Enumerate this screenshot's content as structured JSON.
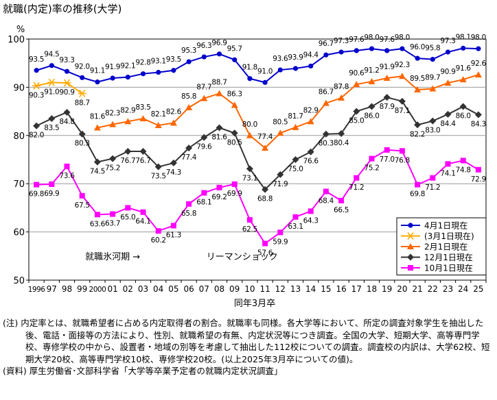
{
  "title": "就職(内定)率の推移(大学)",
  "chart_data": {
    "type": "line",
    "yunit": "%",
    "xlabel": "同年3月卒",
    "ylim": [
      50,
      100
    ],
    "yticks": [
      50,
      60,
      70,
      80,
      90,
      100
    ],
    "grid": true,
    "legend_position": "bottom-right",
    "x_index": [
      0,
      1,
      2,
      3,
      4,
      5,
      6,
      7,
      8,
      9,
      10,
      11,
      12,
      13,
      14,
      15,
      16,
      17,
      18,
      19,
      20,
      21,
      22,
      23,
      24,
      25,
      26,
      27,
      28,
      29
    ],
    "x_tick_labels": [
      "1996",
      "97",
      "98",
      "99",
      "2000",
      "01",
      "02",
      "03",
      "04",
      "05",
      "06",
      "07",
      "08",
      "09",
      "10",
      "11",
      "12",
      "13",
      "14",
      "15",
      "16",
      "17",
      "18",
      "19",
      "20",
      "21",
      "22",
      "23",
      "24",
      "25"
    ],
    "series": [
      {
        "name": "4月1日現在",
        "color": "#0000cc",
        "marker": "circle",
        "values": [
          93.5,
          94.5,
          93.3,
          92.0,
          91.1,
          91.9,
          92.1,
          92.8,
          93.1,
          93.5,
          95.3,
          96.3,
          96.9,
          95.7,
          91.8,
          91.0,
          93.6,
          93.9,
          94.4,
          96.7,
          97.3,
          97.6,
          98.0,
          97.6,
          98.0,
          96.0,
          95.8,
          97.3,
          98.1,
          98.0
        ]
      },
      {
        "name": "(3月1日現在)",
        "color": "#ffaa00",
        "marker": "asterisk",
        "values": [
          90.3,
          91.0,
          90.9,
          88.7,
          null,
          null,
          null,
          null,
          null,
          null,
          null,
          null,
          null,
          null,
          null,
          null,
          null,
          null,
          null,
          null,
          null,
          null,
          null,
          null,
          null,
          null,
          null,
          null,
          null,
          null
        ]
      },
      {
        "name": "2月1日現在",
        "color": "#ff6600",
        "marker": "triangle",
        "values": [
          null,
          null,
          null,
          null,
          81.6,
          82.3,
          82.9,
          83.5,
          82.1,
          82.6,
          85.8,
          87.7,
          88.7,
          86.3,
          80.0,
          77.4,
          80.5,
          81.7,
          82.9,
          86.7,
          87.8,
          90.6,
          91.2,
          91.9,
          92.3,
          89.5,
          89.7,
          90.9,
          91.6,
          92.6
        ]
      },
      {
        "name": "12月1日現在",
        "color": "#333333",
        "marker": "diamond",
        "values": [
          82.0,
          83.5,
          84.8,
          80.3,
          74.5,
          75.2,
          76.7,
          76.7,
          73.5,
          74.3,
          77.4,
          79.6,
          81.6,
          80.5,
          73.1,
          68.8,
          71.9,
          75.0,
          76.6,
          80.3,
          80.4,
          85.0,
          86.0,
          87.9,
          87.1,
          82.2,
          83.0,
          84.4,
          86.0,
          84.3
        ]
      },
      {
        "name": "10月1日現在",
        "color": "#ff00ff",
        "marker": "square",
        "values": [
          69.8,
          69.9,
          73.6,
          67.5,
          63.6,
          63.7,
          65.0,
          64.1,
          60.2,
          61.3,
          65.8,
          68.1,
          69.2,
          69.9,
          62.5,
          57.6,
          59.9,
          63.1,
          64.3,
          68.4,
          66.5,
          71.2,
          75.2,
          77.0,
          76.8,
          69.8,
          71.2,
          74.1,
          74.8,
          72.9
        ]
      }
    ],
    "annotations": [
      {
        "text": "就職氷河期 →",
        "x_index": 5,
        "y": 55
      },
      {
        "text": "リーマンショック",
        "x_index": 13.5,
        "y": 55
      }
    ]
  },
  "notes": {
    "note1": "(注) 内定率とは、就職希望者に占める内定取得者の割合。就職率も同様。各大学等において、所定の調査対象学生を抽出した後、電話・面接等の方法により、性別、就職希望の有無、内定状況等につき調査。全国の大学、短期大学、高等専門学校、専修学校の中から、設置者・地域の別等を考慮して抽出した112校についての調査。調査校の内訳は、大学62校、短期大学20校、高等専門学校10校、専修学校20校。(以上2025年3月卒についての値)。",
    "source": "(資料) 厚生労働省･文部科学省「大学等卒業予定者の就職内定状況調査」"
  }
}
